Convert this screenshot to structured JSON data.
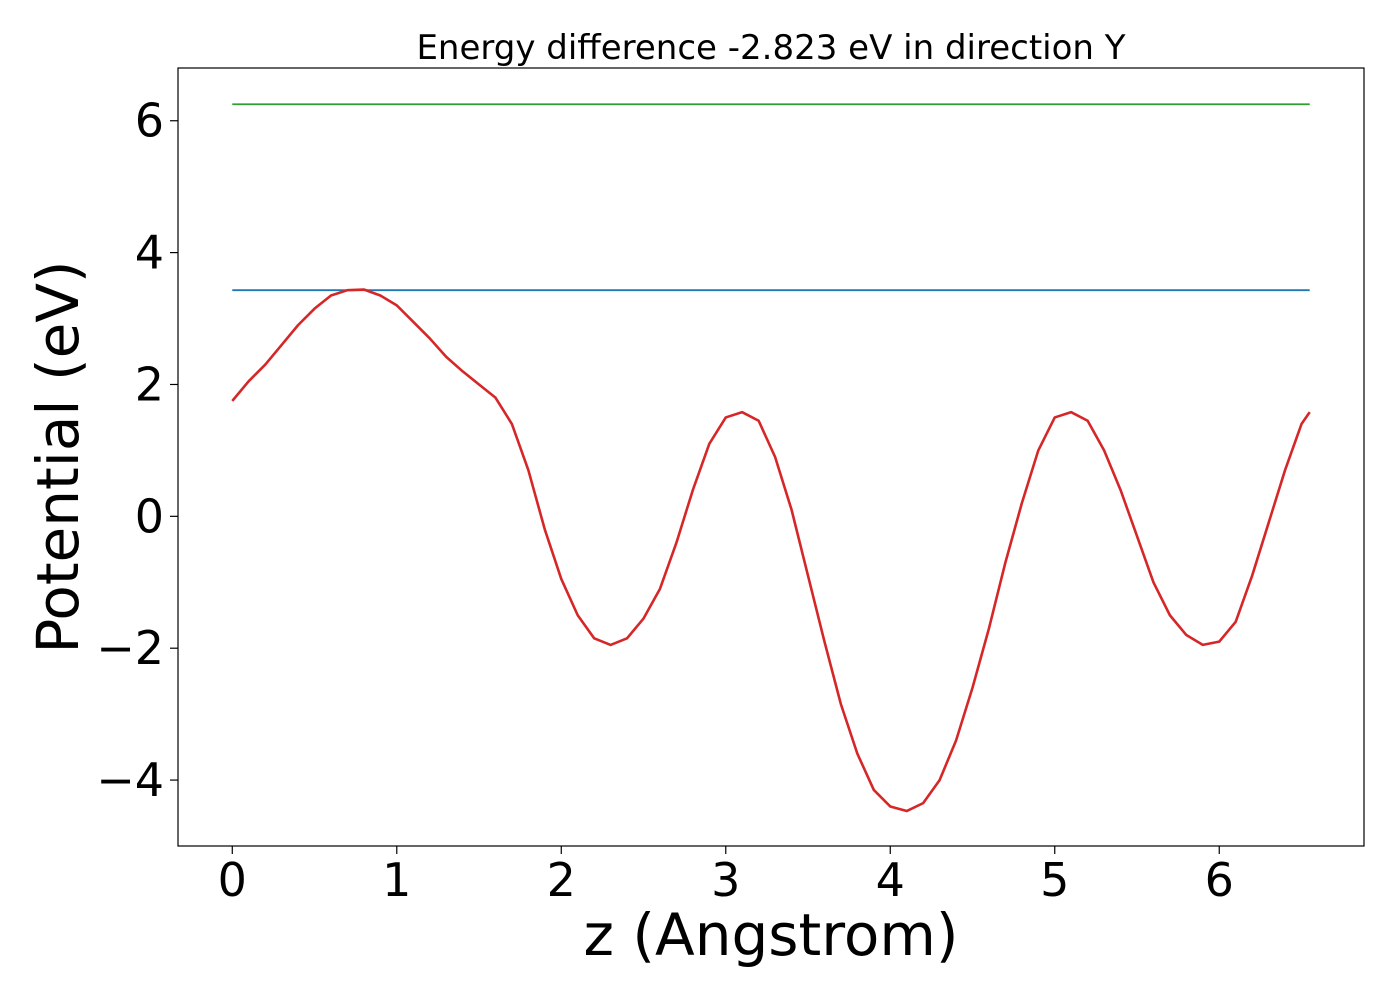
{
  "chart_data": {
    "type": "line",
    "title": "Energy difference -2.823 eV in direction Y",
    "xlabel": "z (Angstrom)",
    "ylabel": "Potential (eV)",
    "xlim": [
      -0.33,
      6.88
    ],
    "ylim": [
      -5.0,
      6.8
    ],
    "xticks": [
      0,
      1,
      2,
      3,
      4,
      5,
      6
    ],
    "xtick_labels": [
      "0",
      "1",
      "2",
      "3",
      "4",
      "5",
      "6"
    ],
    "yticks": [
      -4,
      -2,
      0,
      2,
      4,
      6
    ],
    "ytick_labels": [
      "−4",
      "−2",
      "0",
      "2",
      "4",
      "6"
    ],
    "grid": false,
    "legend": "none",
    "series": [
      {
        "color": "#2ca02c",
        "x": [
          0,
          6.55
        ],
        "y": [
          6.25,
          6.25
        ]
      },
      {
        "color": "#1f77b4",
        "x": [
          0,
          6.55
        ],
        "y": [
          3.43,
          3.43
        ]
      },
      {
        "color": "#d62728",
        "x": [
          0.0,
          0.1,
          0.2,
          0.3,
          0.4,
          0.5,
          0.6,
          0.7,
          0.8,
          0.9,
          1.0,
          1.1,
          1.2,
          1.3,
          1.4,
          1.5,
          1.6,
          1.7,
          1.8,
          1.9,
          2.0,
          2.1,
          2.2,
          2.3,
          2.4,
          2.5,
          2.6,
          2.7,
          2.8,
          2.9,
          3.0,
          3.1,
          3.2,
          3.3,
          3.4,
          3.5,
          3.6,
          3.7,
          3.8,
          3.9,
          4.0,
          4.1,
          4.2,
          4.3,
          4.4,
          4.5,
          4.6,
          4.7,
          4.8,
          4.9,
          5.0,
          5.1,
          5.2,
          5.3,
          5.4,
          5.5,
          5.6,
          5.7,
          5.8,
          5.9,
          6.0,
          6.1,
          6.2,
          6.3,
          6.4,
          6.5,
          6.55
        ],
        "y": [
          1.75,
          2.05,
          2.3,
          2.6,
          2.9,
          3.15,
          3.35,
          3.43,
          3.44,
          3.35,
          3.2,
          2.95,
          2.7,
          2.42,
          2.2,
          2.0,
          1.8,
          1.4,
          0.7,
          -0.2,
          -0.95,
          -1.5,
          -1.85,
          -1.95,
          -1.85,
          -1.55,
          -1.1,
          -0.4,
          0.4,
          1.1,
          1.5,
          1.58,
          1.45,
          0.9,
          0.1,
          -0.9,
          -1.9,
          -2.85,
          -3.6,
          -4.15,
          -4.4,
          -4.47,
          -4.35,
          -4.0,
          -3.4,
          -2.6,
          -1.7,
          -0.7,
          0.2,
          1.0,
          1.5,
          1.58,
          1.45,
          1.0,
          0.4,
          -0.3,
          -1.0,
          -1.5,
          -1.8,
          -1.95,
          -1.9,
          -1.6,
          -0.9,
          -0.1,
          0.7,
          1.4,
          1.58
        ]
      }
    ]
  }
}
